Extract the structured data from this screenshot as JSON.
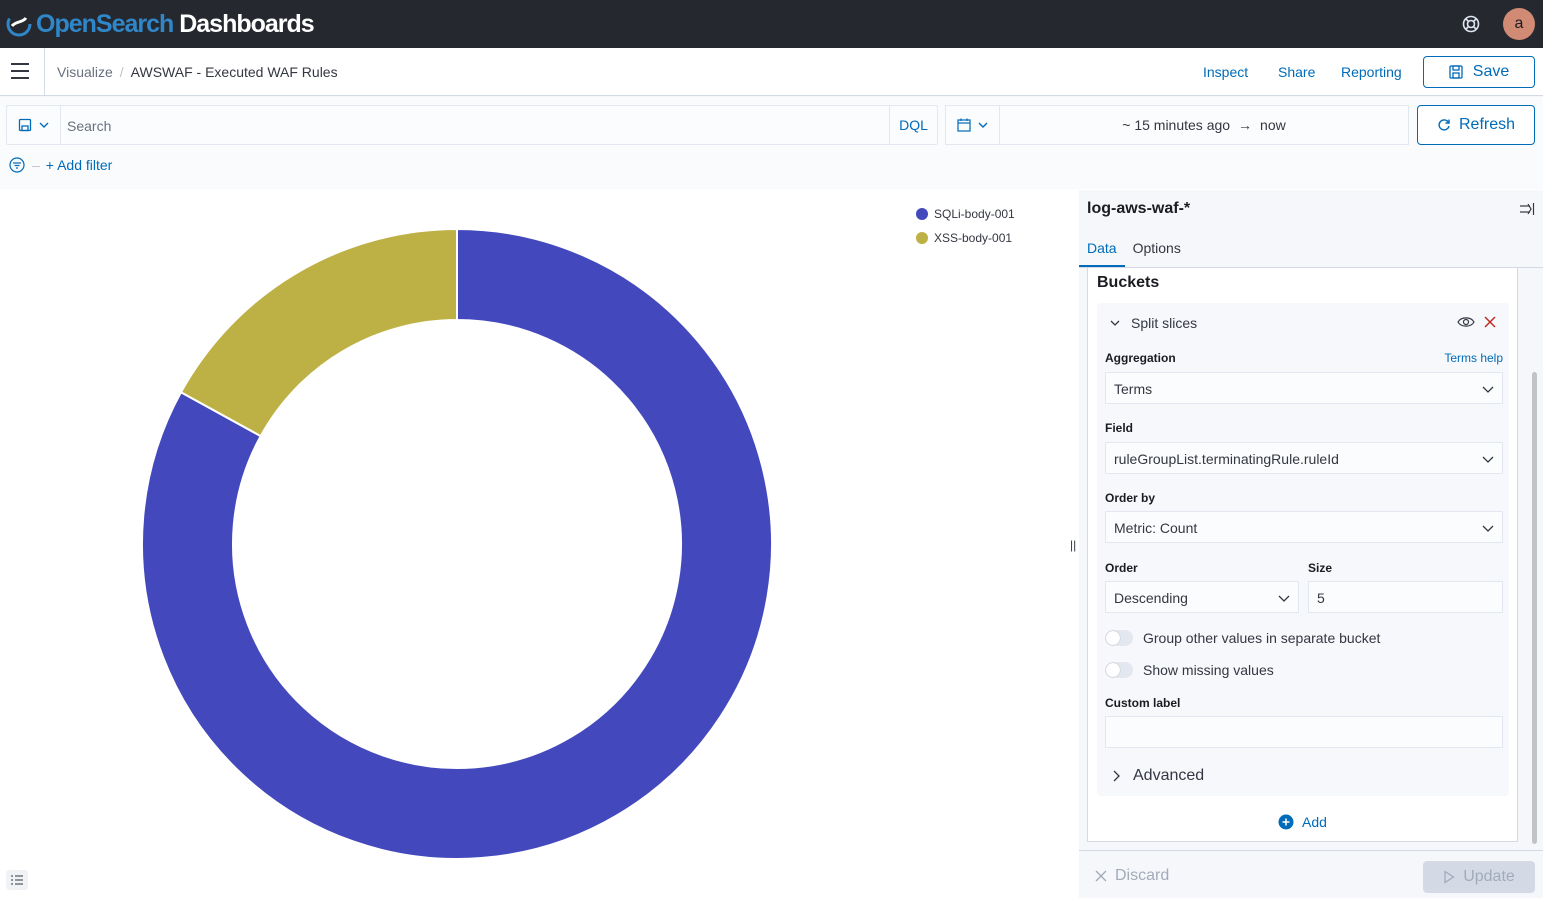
{
  "app": {
    "brand_part1": "OpenSearch",
    "brand_part2": " Dashboards",
    "avatar_initial": "a"
  },
  "breadcrumb": {
    "parent": "Visualize",
    "separator": "/",
    "current": "AWSWAF - Executed WAF Rules"
  },
  "top_actions": {
    "inspect": "Inspect",
    "share": "Share",
    "reporting": "Reporting",
    "save": "Save"
  },
  "query": {
    "search_placeholder": "Search",
    "language": "DQL",
    "time_start": "~ 15 minutes ago",
    "time_arrow": "→",
    "time_end": "now",
    "refresh": "Refresh",
    "add_filter": "+ Add filter"
  },
  "legend": {
    "items": [
      {
        "label": "SQLi-body-001",
        "color": "#4349bd"
      },
      {
        "label": "XSS-body-001",
        "color": "#bdb146"
      }
    ]
  },
  "chart_data": {
    "type": "pie",
    "donut": true,
    "categories": [
      "SQLi-body-001",
      "XSS-body-001"
    ],
    "values": [
      83,
      17
    ],
    "colors": [
      "#4349bd",
      "#bdb146"
    ],
    "legend_position": "top-right"
  },
  "panel": {
    "index_pattern": "log-aws-waf-*",
    "tabs": [
      "Data",
      "Options"
    ],
    "active_tab": "Data",
    "buckets_title": "Buckets",
    "agg_title": "Split slices",
    "aggregation_label": "Aggregation",
    "aggregation_help": "Terms help",
    "aggregation_value": "Terms",
    "field_label": "Field",
    "field_value": "ruleGroupList.terminatingRule.ruleId",
    "order_by_label": "Order by",
    "order_by_value": "Metric: Count",
    "order_label": "Order",
    "order_value": "Descending",
    "size_label": "Size",
    "size_value": "5",
    "group_other_label": "Group other values in separate bucket",
    "show_missing_label": "Show missing values",
    "custom_label_label": "Custom label",
    "custom_label_value": "",
    "advanced_label": "Advanced",
    "add_label": "Add",
    "discard_label": "Discard",
    "update_label": "Update"
  }
}
